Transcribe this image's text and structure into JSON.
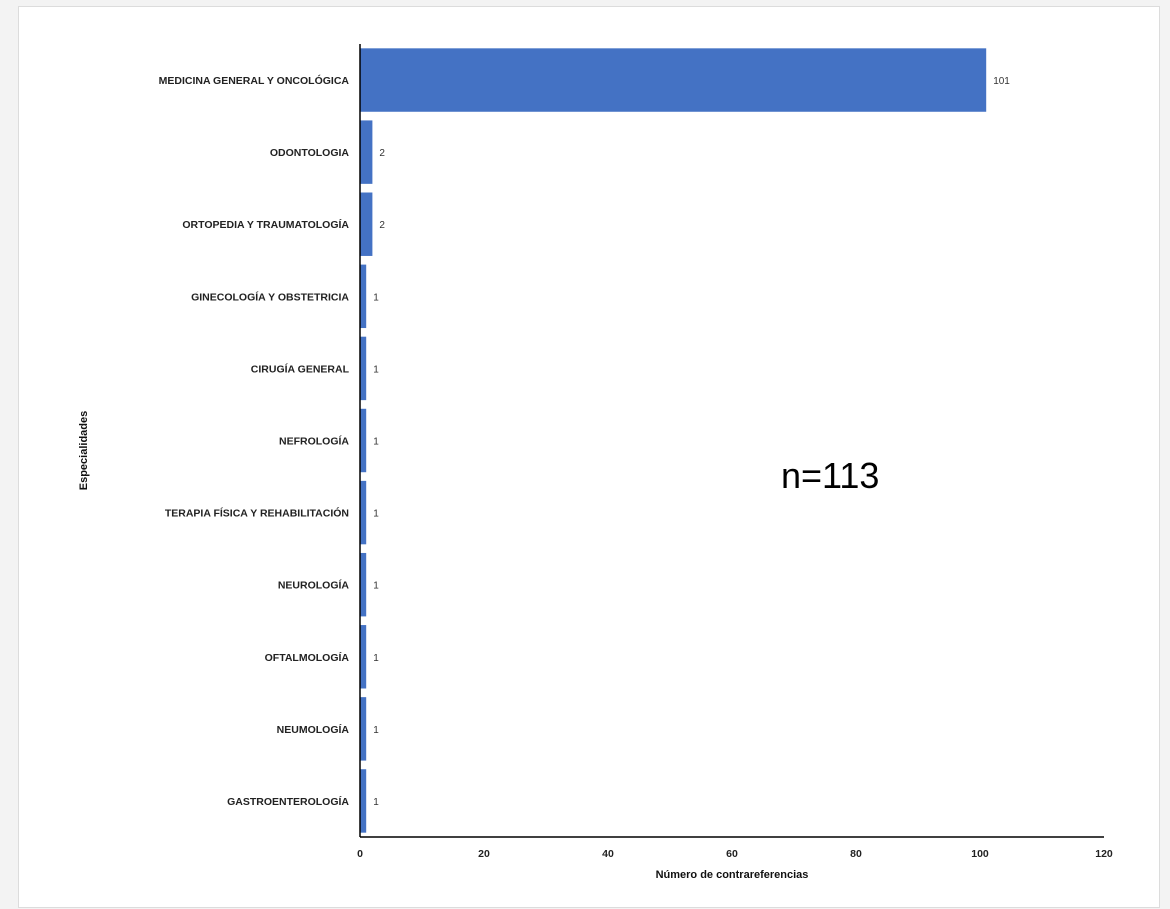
{
  "chart_data": {
    "type": "bar",
    "orientation": "horizontal",
    "categories": [
      "MEDICINA GENERAL Y ONCOLÓGICA",
      "ODONTOLOGIA",
      "ORTOPEDIA Y TRAUMATOLOGÍA",
      "GINECOLOGÍA Y OBSTETRICIA",
      "CIRUGÍA GENERAL",
      "NEFROLOGÍA",
      "TERAPIA FÍSICA Y REHABILITACIÓN",
      "NEUROLOGÍA",
      "OFTALMOLOGÍA",
      "NEUMOLOGÍA",
      "GASTROENTEROLOGÍA"
    ],
    "values": [
      101,
      2,
      2,
      1,
      1,
      1,
      1,
      1,
      1,
      1,
      1
    ],
    "data_labels": [
      "101",
      "2",
      "2",
      "1",
      "1",
      "1",
      "1",
      "1",
      "1",
      "1",
      "1"
    ],
    "xlabel": "Número de contrareferencias",
    "ylabel": "Especialidades",
    "xlim": [
      0,
      120
    ],
    "xticks": [
      0,
      20,
      40,
      60,
      80,
      100,
      120
    ],
    "xtick_labels": [
      "0",
      "20",
      "40",
      "60",
      "80",
      "100",
      "120"
    ],
    "grid": false,
    "legend": "none",
    "annotation": "n=113",
    "bar_color": "#4472c4",
    "axis_color": "#000000"
  }
}
